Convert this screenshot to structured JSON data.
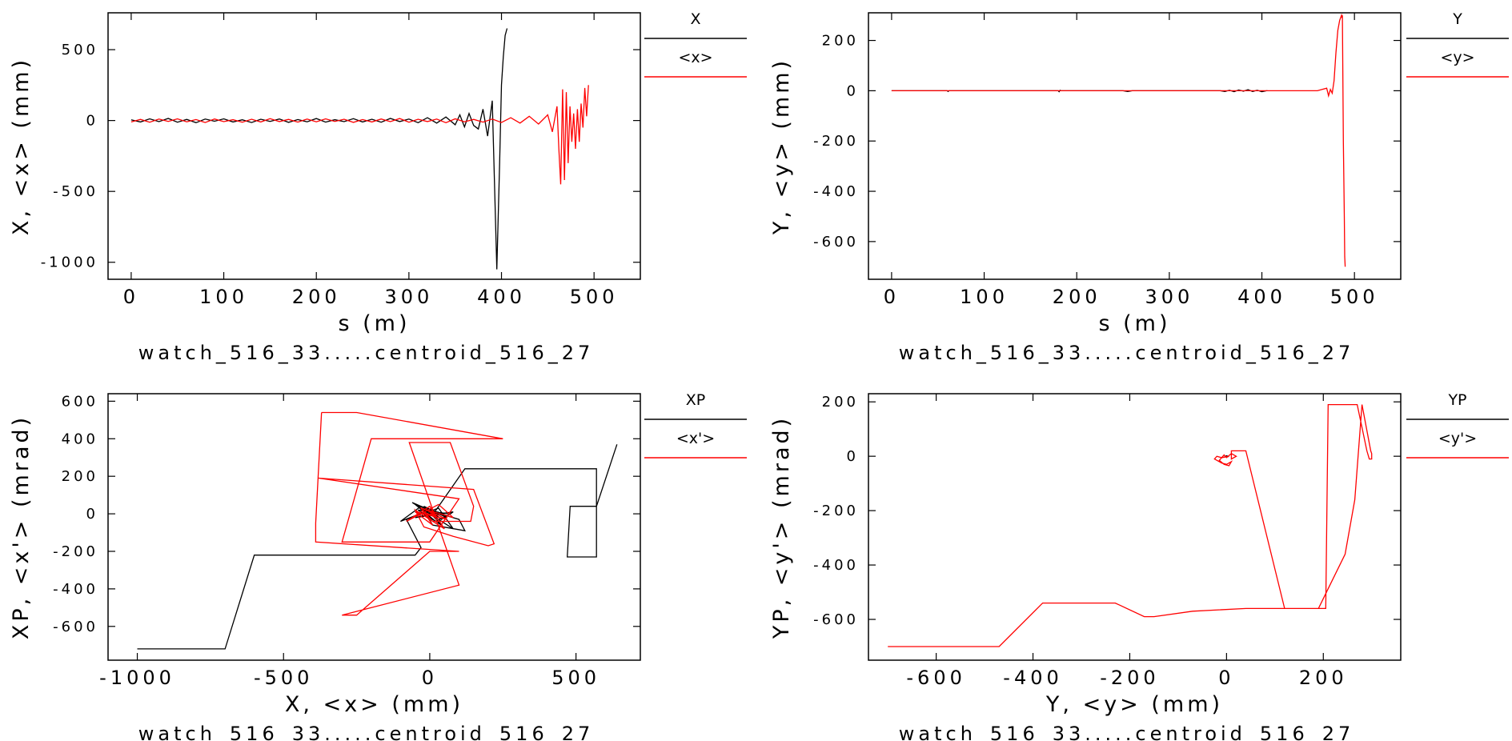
{
  "colors": {
    "black_series": "#000000",
    "red_series": "#ff0000",
    "frame": "#000000",
    "background": "#ffffff"
  },
  "chart_data": [
    {
      "type": "line",
      "xlabel": "s (m)",
      "ylabel": "X, <x> (mm)",
      "caption": "watch_516_33.....centroid_516_27",
      "xlim": [
        -25,
        550
      ],
      "ylim": [
        -1120,
        760
      ],
      "xticks": [
        0,
        100,
        200,
        300,
        400,
        500
      ],
      "yticks": [
        500,
        0,
        -500,
        -1000
      ],
      "legend": {
        "placement": "right",
        "items": [
          "X",
          "<x>"
        ]
      },
      "series": [
        {
          "name": "X",
          "color": "#000000",
          "x": [
            0,
            10,
            20,
            30,
            40,
            50,
            60,
            70,
            80,
            90,
            100,
            110,
            120,
            130,
            140,
            150,
            160,
            170,
            180,
            190,
            200,
            210,
            220,
            230,
            240,
            250,
            260,
            270,
            280,
            290,
            300,
            310,
            320,
            330,
            340,
            350,
            355,
            360,
            365,
            370,
            375,
            380,
            385,
            390,
            395,
            398,
            400,
            402,
            404,
            406
          ],
          "y": [
            5,
            -10,
            12,
            -8,
            15,
            -12,
            8,
            -15,
            10,
            -5,
            12,
            -10,
            5,
            -14,
            9,
            -6,
            11,
            -13,
            7,
            -9,
            14,
            -11,
            6,
            -8,
            13,
            -10,
            9,
            -12,
            15,
            -7,
            10,
            -15,
            20,
            -18,
            25,
            -30,
            40,
            -45,
            50,
            -35,
            -60,
            80,
            -110,
            140,
            -1050,
            -300,
            250,
            450,
            600,
            650
          ]
        },
        {
          "name": "<x>",
          "color": "#ff0000",
          "x": [
            0,
            10,
            20,
            30,
            40,
            50,
            60,
            70,
            80,
            90,
            100,
            110,
            120,
            130,
            140,
            150,
            160,
            170,
            180,
            190,
            200,
            210,
            220,
            230,
            240,
            250,
            260,
            270,
            280,
            290,
            300,
            310,
            320,
            330,
            340,
            350,
            360,
            370,
            380,
            390,
            400,
            410,
            420,
            430,
            440,
            450,
            455,
            460,
            462,
            464,
            466,
            468,
            470,
            472,
            474,
            476,
            478,
            480,
            482,
            484,
            486,
            488,
            490,
            492,
            494
          ],
          "y": [
            -10,
            8,
            -12,
            10,
            -6,
            12,
            -9,
            7,
            -14,
            11,
            -8,
            6,
            -12,
            9,
            -10,
            13,
            -7,
            8,
            -11,
            10,
            -9,
            12,
            -6,
            9,
            -13,
            7,
            -10,
            11,
            -8,
            14,
            -12,
            9,
            -7,
            10,
            -15,
            12,
            -9,
            8,
            -11,
            10,
            -14,
            20,
            -18,
            30,
            -25,
            40,
            -80,
            100,
            -200,
            -450,
            220,
            -420,
            200,
            -300,
            100,
            -150,
            50,
            -200,
            80,
            -150,
            120,
            -50,
            230,
            30,
            250
          ]
        }
      ]
    },
    {
      "type": "line",
      "xlabel": "s (m)",
      "ylabel": "Y, <y> (mm)",
      "caption": "watch_516_33.....centroid_516_27",
      "xlim": [
        -25,
        550
      ],
      "ylim": [
        -750,
        310
      ],
      "xticks": [
        0,
        100,
        200,
        300,
        400,
        500
      ],
      "yticks": [
        200,
        0,
        -200,
        -400,
        -600
      ],
      "legend": {
        "placement": "right",
        "items": [
          "Y",
          "<y>"
        ]
      },
      "series": [
        {
          "name": "Y",
          "color": "#000000",
          "x": [
            0,
            60,
            61,
            62,
            120,
            180,
            181,
            182,
            183,
            250,
            255,
            260,
            355,
            360,
            365,
            370,
            375,
            380,
            385,
            390,
            395,
            400,
            405,
            406
          ],
          "y": [
            0,
            0,
            -3,
            0,
            0,
            0,
            -4,
            2,
            0,
            0,
            -3,
            0,
            0,
            -3,
            2,
            -4,
            3,
            -2,
            4,
            -3,
            2,
            -4,
            0,
            0
          ]
        },
        {
          "name": "<y>",
          "color": "#ff0000",
          "x": [
            0,
            100,
            200,
            300,
            400,
            460,
            465,
            470,
            472,
            474,
            476,
            478,
            480,
            482,
            484,
            486,
            486.5,
            487,
            488,
            489,
            489.5,
            490
          ],
          "y": [
            0,
            0,
            0,
            0,
            0,
            0,
            5,
            10,
            -20,
            5,
            -10,
            40,
            150,
            240,
            280,
            300,
            290,
            300,
            -200,
            -500,
            -660,
            -700
          ]
        }
      ]
    },
    {
      "type": "line",
      "xlabel": "X, <x> (mm)",
      "ylabel": "XP, <x'> (mrad)",
      "caption": "watch_516_33.....centroid_516_27",
      "xlim": [
        -1100,
        720
      ],
      "ylim": [
        -780,
        640
      ],
      "xticks": [
        -1000,
        -500,
        0,
        500
      ],
      "yticks": [
        600,
        400,
        200,
        0,
        -200,
        -400,
        -600
      ],
      "legend": {
        "placement": "right",
        "items": [
          "XP",
          "<x'>"
        ]
      },
      "series": [
        {
          "name": "XP",
          "color": "#000000",
          "x": [
            -1000,
            -700,
            -600,
            -300,
            -50,
            -30,
            -80,
            30,
            80,
            -60,
            60,
            -20,
            40,
            -40,
            70,
            20,
            -50,
            50,
            -30,
            100,
            120,
            10,
            -20,
            60,
            -30,
            -100,
            0,
            40,
            80,
            -50,
            30,
            10,
            120,
            570,
            570,
            470,
            480,
            570,
            640,
            640
          ],
          "y": [
            -720,
            -720,
            -220,
            -220,
            -220,
            -180,
            -30,
            30,
            -80,
            60,
            -20,
            40,
            -60,
            20,
            0,
            -40,
            50,
            -10,
            30,
            -30,
            -90,
            -60,
            20,
            -10,
            40,
            -40,
            20,
            -30,
            10,
            -20,
            10,
            -5,
            240,
            240,
            -230,
            -230,
            40,
            40,
            370,
            370
          ]
        },
        {
          "name": "<x'>",
          "color": "#ff0000",
          "x": [
            -370,
            -250,
            250,
            250,
            -200,
            -200,
            -300,
            0,
            100,
            -380,
            -380,
            150,
            220,
            200,
            80,
            -20,
            -50,
            50,
            0,
            -80,
            30,
            80,
            -30,
            10,
            -50,
            60,
            -10,
            20,
            0,
            20,
            -20,
            10,
            140,
            150,
            70,
            -70,
            100,
            -300,
            -250,
            0,
            100,
            -390,
            -390,
            -370
          ],
          "y": [
            540,
            540,
            400,
            400,
            400,
            400,
            -150,
            -150,
            80,
            190,
            190,
            130,
            -160,
            -170,
            -120,
            -70,
            20,
            -80,
            40,
            -40,
            50,
            -20,
            30,
            -60,
            10,
            -30,
            20,
            -10,
            0,
            -20,
            10,
            -40,
            -40,
            40,
            380,
            380,
            -380,
            -540,
            -540,
            -200,
            -200,
            -150,
            -50,
            540
          ]
        }
      ]
    },
    {
      "type": "line",
      "xlabel": "Y, <y> (mm)",
      "ylabel": "YP, <y'> (mrad)",
      "caption": "watch_516_33.....centroid_516_27",
      "xlim": [
        -740,
        360
      ],
      "ylim": [
        -750,
        230
      ],
      "xticks": [
        -600,
        -400,
        -200,
        0,
        200
      ],
      "yticks": [
        200,
        0,
        -200,
        -400,
        -600
      ],
      "legend": {
        "placement": "right",
        "items": [
          "YP",
          "<y'>"
        ]
      },
      "series": [
        {
          "name": "YP",
          "color": "#000000",
          "x": [
            -5,
            0,
            5
          ],
          "y": [
            -4,
            2,
            -2
          ]
        },
        {
          "name": "<y'>",
          "color": "#ff0000",
          "x": [
            -700,
            -470,
            -380,
            -230,
            -170,
            -150,
            -70,
            40,
            120,
            190,
            205,
            210,
            270,
            290,
            295,
            300,
            300,
            298,
            280,
            265,
            245,
            190,
            120,
            40,
            10,
            10,
            20,
            10,
            0,
            -5,
            -15,
            -5,
            5,
            10,
            0,
            -10,
            -25,
            -20,
            -10,
            5
          ],
          "y": [
            -700,
            -700,
            -540,
            -540,
            -590,
            -590,
            -570,
            -560,
            -560,
            -560,
            -560,
            190,
            190,
            20,
            -10,
            -10,
            10,
            20,
            190,
            -160,
            -360,
            -560,
            -560,
            20,
            20,
            -10,
            0,
            10,
            -5,
            5,
            -15,
            -30,
            -35,
            -20,
            -30,
            -25,
            -10,
            0,
            -5,
            0
          ]
        }
      ]
    }
  ]
}
